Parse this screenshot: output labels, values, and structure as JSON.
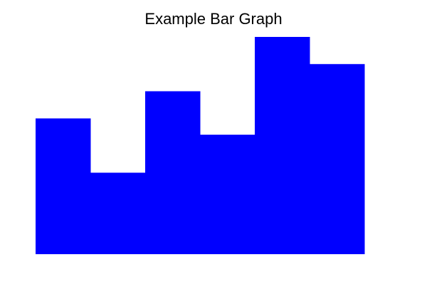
{
  "chart_data": {
    "type": "bar",
    "title": "Example Bar Graph",
    "categories": [
      "",
      "",
      "",
      "",
      "",
      ""
    ],
    "values": [
      5,
      3,
      6,
      4.4,
      8,
      7
    ],
    "ylim": [
      0,
      8
    ],
    "xlabel": "",
    "ylabel": "",
    "grid": false,
    "colors": {
      "bar": "#0000ff",
      "background": "#ffffff",
      "title": "#000000"
    }
  }
}
